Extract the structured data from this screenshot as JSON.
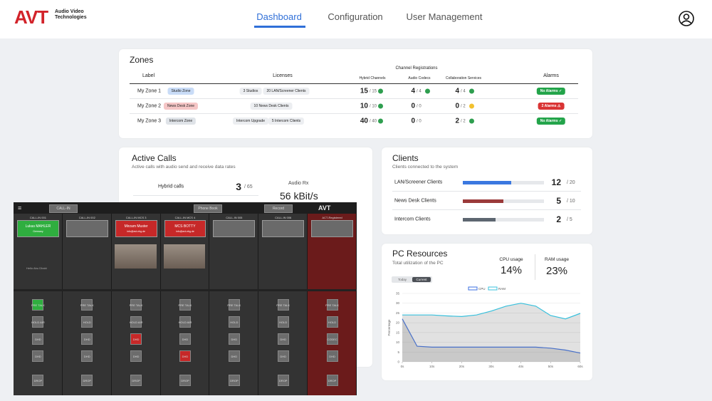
{
  "header": {
    "logo": "AVT",
    "logo_text": "Audio Video Technologies",
    "tabs": [
      "Dashboard",
      "Configuration",
      "User Management"
    ]
  },
  "zones": {
    "title": "Zones",
    "columns": {
      "label": "Label",
      "licenses": "Licenses",
      "group": "Channel Registrations",
      "hybrid": "Hybrid Channels",
      "codecs": "Audio Codecs",
      "collab": "Collaboration Services",
      "alarms": "Alarms"
    },
    "rows": [
      {
        "label": "My Zone 1",
        "tag": "Studio Zone",
        "tag_color": "#c9dcf7",
        "licenses": [
          "3 Studios",
          "20 LAN/Screener Clients"
        ],
        "hybrid": {
          "value": "15",
          "total": "/ 15",
          "color": "#2e9e4f"
        },
        "codecs": {
          "value": "4",
          "total": "/ 4",
          "color": "#2e9e4f"
        },
        "collab": {
          "value": "4",
          "total": "/ 4",
          "color": "#2e9e4f"
        },
        "alarm": "No Alarms ✓",
        "alarm_color": "#23a44a"
      },
      {
        "label": "My Zone 2",
        "tag": "News Desk Zone",
        "tag_color": "#f5c6c6",
        "licenses": [
          "10 News Desk Clients"
        ],
        "hybrid": {
          "value": "10",
          "total": "/ 10",
          "color": "#2e9e4f"
        },
        "codecs": {
          "value": "0",
          "total": "/ 0",
          "color": null
        },
        "collab": {
          "value": "0",
          "total": "/ 2",
          "color": "#f2c12e"
        },
        "alarm": "2 Alarms ⚠",
        "alarm_color": "#d93434"
      },
      {
        "label": "My Zone 3",
        "tag": "Intercom Zone",
        "tag_color": "#dfe3e8",
        "licenses": [
          "Intercom Upgrade",
          "5 Intercom Clients"
        ],
        "hybrid": {
          "value": "40",
          "total": "/ 40",
          "color": "#2e9e4f"
        },
        "codecs": {
          "value": "0",
          "total": "/ 0",
          "color": null
        },
        "collab": {
          "value": "2",
          "total": "/ 2",
          "color": "#2e9e4f"
        },
        "alarm": "No Alarms ✓",
        "alarm_color": "#23a44a"
      }
    ]
  },
  "active_calls": {
    "title": "Active Calls",
    "subtitle": "Active calls with audio send and receive data rates",
    "rows": [
      {
        "name": "Hybrid calls",
        "value": "3",
        "total": "/ 65"
      }
    ],
    "rx_label": "Audio Rx",
    "rx_value": "56 kBit/s"
  },
  "clients": {
    "title": "Clients",
    "subtitle": "Clients connected to the system",
    "rows": [
      {
        "name": "LAN/Screener Clients",
        "value": 12,
        "max": 20,
        "max_label": "/ 20",
        "color": "#3b78e0"
      },
      {
        "name": "News Desk Clients",
        "value": 5,
        "max": 10,
        "max_label": "/ 10",
        "color": "#9b3a3a"
      },
      {
        "name": "Intercom Clients",
        "value": 2,
        "max": 5,
        "max_label": "/ 5",
        "color": "#5d6670"
      }
    ]
  },
  "pc_resources": {
    "title": "PC Resources",
    "subtitle": "Total utilization of the PC",
    "cpu_label": "CPU usage",
    "cpu_value": "14%",
    "ram_label": "RAM usage",
    "ram_value": "23%",
    "toggle": [
      "Today",
      "Current"
    ],
    "chart_data": {
      "type": "line",
      "y_label": "Percentage",
      "x": [
        0,
        5,
        10,
        15,
        20,
        25,
        30,
        35,
        40,
        45,
        50,
        55,
        60
      ],
      "xlim": [
        0,
        60
      ],
      "xticks": [
        {
          "value": 0,
          "label": "0s"
        },
        {
          "value": 10,
          "label": "10s"
        },
        {
          "value": 20,
          "label": "20s"
        },
        {
          "value": 30,
          "label": "30s"
        },
        {
          "value": 40,
          "label": "40s"
        },
        {
          "value": 50,
          "label": "50s"
        },
        {
          "value": 60,
          "label": "60s"
        }
      ],
      "ylim": [
        0,
        35
      ],
      "yticks": [
        0,
        5,
        10,
        15,
        20,
        25,
        30,
        35
      ],
      "grid": true,
      "series": [
        {
          "name": "CPU",
          "color": "#3b6fe0",
          "values": [
            22,
            8,
            7.5,
            7.5,
            7.5,
            7.5,
            7.5,
            7.5,
            7.5,
            7.5,
            7,
            6,
            4.5
          ]
        },
        {
          "name": "RAM",
          "color": "#38c0dc",
          "values": [
            24,
            24,
            24,
            23.5,
            23.2,
            24,
            26,
            28.5,
            30,
            28.5,
            23.7,
            22,
            24.8
          ]
        }
      ]
    }
  },
  "console": {
    "toolbar": [
      "CALL-IN",
      "Phone Book",
      "Record"
    ],
    "logo": "AVT",
    "strips": [
      {
        "name": "CALL-IN 001",
        "caller": "Lukas MAHLER",
        "caller_sub": "Germany",
        "note": "Hello Abu Dhabi",
        "buttons": [
          "PRE TALK",
          "HOLD AIR",
          "DHD",
          "DHD",
          "DROP"
        ]
      },
      {
        "name": "CALL-IN 002",
        "caller": null,
        "buttons": [
          "PRE TALK",
          "HOLD",
          "DHD",
          "DHD",
          "DROP"
        ]
      },
      {
        "name": "CALL-IN MCS 3",
        "caller": "Mirzam Muster",
        "caller_sub": "info@avt-nbg.de",
        "buttons": [
          "PRE TALK",
          "HOLD AIR",
          "DHD",
          "DHD",
          "DROP"
        ]
      },
      {
        "name": "CALL-IN MCS 4",
        "caller": "MCS BOTTY",
        "caller_sub": "info@avt-nbg.de",
        "buttons": [
          "PRE TALK",
          "HOLD AIR",
          "DHD",
          "DHD",
          "DROP"
        ]
      },
      {
        "name": "CALL-IN 005",
        "caller": null,
        "buttons": [
          "PRE TALK",
          "HOLD",
          "DHD",
          "DHD",
          "DROP"
        ]
      },
      {
        "name": "CALL-IN 006",
        "caller": null,
        "buttons": [
          "PRE TALK",
          "HOLD",
          "DHD",
          "DHD",
          "DROP"
        ]
      },
      {
        "name": "ACT-Registered",
        "caller": null,
        "buttons": [
          "PRE TALK",
          "HOLD",
          "CODEC",
          "DHD",
          "DROP"
        ]
      }
    ]
  }
}
